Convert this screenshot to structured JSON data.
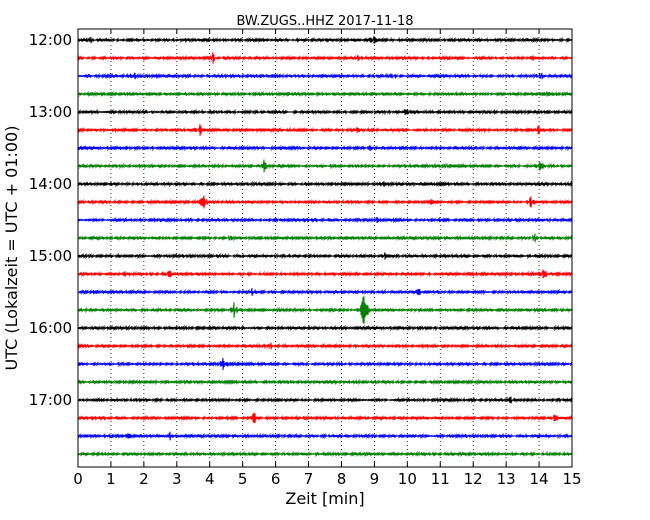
{
  "chart_data": {
    "type": "line",
    "title": "BW.ZUGS..HHZ 2017-11-18",
    "xlabel": "Zeit  [min]",
    "ylabel": "UTC (Lokalzeit = UTC + 01:00)",
    "xlim": [
      0,
      15
    ],
    "x_ticks": [
      "0",
      "1",
      "2",
      "3",
      "4",
      "5",
      "6",
      "7",
      "8",
      "9",
      "10",
      "11",
      "12",
      "13",
      "14",
      "15"
    ],
    "y_ticks": [
      "12:00",
      "13:00",
      "14:00",
      "15:00",
      "16:00",
      "17:00"
    ],
    "grid": "vertical dotted",
    "trace_interval_minutes": 15,
    "colors": [
      "#000000",
      "#ff0000",
      "#0000ff",
      "#008000"
    ],
    "traces": [
      {
        "start": "12:00",
        "events": [
          [
            0.35,
            6
          ],
          [
            8.95,
            5
          ]
        ]
      },
      {
        "start": "12:15",
        "events": [
          [
            4.1,
            5
          ],
          [
            8.5,
            3
          ],
          [
            13.8,
            5
          ]
        ]
      },
      {
        "start": "12:30",
        "events": [
          [
            1.7,
            4
          ],
          [
            9.45,
            5
          ],
          [
            14.05,
            4
          ]
        ]
      },
      {
        "start": "12:45",
        "events": [
          [
            14.2,
            6
          ]
        ]
      },
      {
        "start": "13:00",
        "events": [
          [
            10.0,
            7
          ]
        ]
      },
      {
        "start": "13:15",
        "events": [
          [
            3.7,
            6
          ],
          [
            8.5,
            3
          ],
          [
            14.0,
            5
          ]
        ]
      },
      {
        "start": "13:30",
        "events": [
          [
            8.85,
            3
          ]
        ]
      },
      {
        "start": "13:45",
        "events": [
          [
            5.65,
            7
          ],
          [
            14.05,
            5
          ]
        ]
      },
      {
        "start": "14:00",
        "events": [
          [
            9.3,
            6
          ]
        ]
      },
      {
        "start": "14:15",
        "events": [
          [
            3.8,
            9
          ],
          [
            10.75,
            4
          ],
          [
            13.75,
            7
          ]
        ]
      },
      {
        "start": "14:30",
        "events": [
          [
            9.05,
            4
          ]
        ]
      },
      {
        "start": "14:45",
        "events": [
          [
            4.6,
            4
          ],
          [
            13.85,
            5
          ]
        ]
      },
      {
        "start": "15:00",
        "events": [
          [
            9.3,
            4
          ]
        ]
      },
      {
        "start": "15:15",
        "events": [
          [
            1.4,
            3
          ],
          [
            2.8,
            4
          ],
          [
            12.0,
            4
          ],
          [
            14.15,
            7
          ]
        ]
      },
      {
        "start": "15:30",
        "events": [
          [
            5.3,
            4
          ],
          [
            10.35,
            7
          ]
        ]
      },
      {
        "start": "15:45",
        "events": [
          [
            4.75,
            9
          ],
          [
            8.7,
            28
          ]
        ]
      },
      {
        "start": "16:00",
        "events": []
      },
      {
        "start": "16:15",
        "events": [
          [
            5.85,
            3
          ]
        ]
      },
      {
        "start": "16:30",
        "events": [
          [
            4.4,
            5
          ]
        ]
      },
      {
        "start": "16:45",
        "events": []
      },
      {
        "start": "17:00",
        "events": [
          [
            13.15,
            3
          ]
        ]
      },
      {
        "start": "17:15",
        "events": [
          [
            5.35,
            5
          ],
          [
            14.5,
            4
          ]
        ]
      },
      {
        "start": "17:30",
        "events": [
          [
            1.5,
            4
          ],
          [
            2.8,
            6
          ]
        ]
      },
      {
        "start": "17:45",
        "events": []
      }
    ]
  }
}
